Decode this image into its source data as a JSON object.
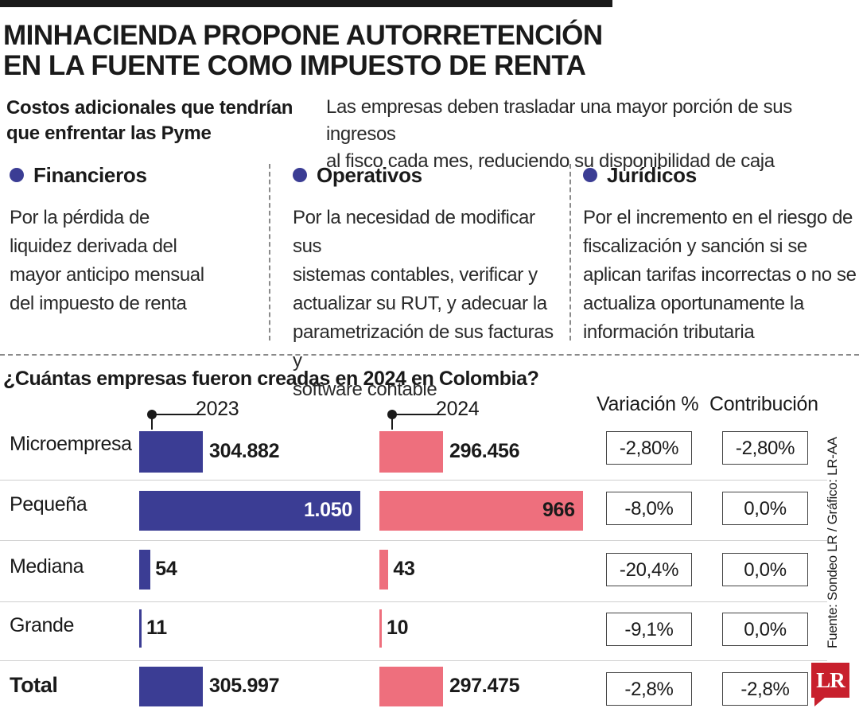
{
  "header": {
    "title_line1": "MINHACIENDA PROPONE AUTORRETENCIÓN",
    "title_line2": "EN LA FUENTE COMO IMPUESTO DE RENTA",
    "subtitle_line1": "Costos adicionales que tendrían",
    "subtitle_line2": "que enfrentar las Pyme",
    "intro_line1": "Las empresas deben trasladar una mayor porción de sus ingresos",
    "intro_line2": "al fisco cada mes, reduciendo su disponibilidad de caja"
  },
  "costs": [
    {
      "label": "Financieros",
      "lines": [
        "Por la pérdida de",
        "liquidez derivada del",
        "mayor anticipo mensual",
        "del impuesto de renta"
      ]
    },
    {
      "label": "Operativos",
      "lines": [
        "Por la necesidad de modificar sus",
        "sistemas contables, verificar y",
        "actualizar su RUT, y adecuar la",
        "parametrización de sus facturas y",
        "software contable"
      ]
    },
    {
      "label": "Jurídicos",
      "lines": [
        "Por el incremento en el riesgo de",
        "fiscalización y sanción si se",
        "aplican tarifas incorrectas o no se",
        "actualiza oportunamente la",
        "información tributaria"
      ]
    }
  ],
  "colors": {
    "series_2023": "#3b3d94",
    "series_2024": "#ee6f7d",
    "bullet": "#3b3d94",
    "logo": "#c8202d"
  },
  "chart_data": {
    "type": "bar",
    "title": "¿Cuántas empresas fueron creadas en 2024 en Colombia?",
    "categories": [
      "Microempresa",
      "Pequeña",
      "Mediana",
      "Grande",
      "Total"
    ],
    "series": [
      {
        "name": "2023",
        "values": [
          304882,
          1050,
          54,
          11,
          305997
        ],
        "labels": [
          "304.882",
          "1.050",
          "54",
          "11",
          "305.997"
        ]
      },
      {
        "name": "2024",
        "values": [
          296456,
          966,
          43,
          10,
          297475
        ],
        "labels": [
          "296.456",
          "966",
          "43",
          "10",
          "297.475"
        ]
      }
    ],
    "table_columns": [
      "Variación %",
      "Contribución"
    ],
    "variacion": [
      "-2,80%",
      "-8,0%",
      "-20,4%",
      "-9,1%",
      "-2,8%"
    ],
    "contribucion": [
      "-2,80%",
      "0,0%",
      "0,0%",
      "0,0%",
      "-2,8%"
    ],
    "note": "Bars for Microempresa and Total are drawn at a shortened (broken) length; Pequeña, Mediana and Grande share a linear scale."
  },
  "footer": {
    "source": "Fuente: Sondeo LR / Gráfico: LR-AA",
    "logo": "LR"
  }
}
